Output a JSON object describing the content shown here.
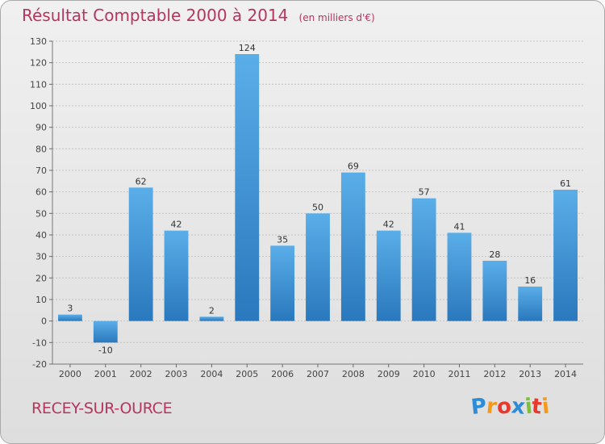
{
  "chart_data": {
    "type": "bar",
    "title": "Résultat Comptable 2000 à 2014",
    "subtitle": "(en milliers d'€)",
    "categories": [
      "2000",
      "2001",
      "2002",
      "2003",
      "2004",
      "2005",
      "2006",
      "2007",
      "2008",
      "2009",
      "2010",
      "2011",
      "2012",
      "2013",
      "2014"
    ],
    "values": [
      3,
      -10,
      62,
      42,
      2,
      124,
      35,
      50,
      69,
      42,
      57,
      41,
      28,
      16,
      61
    ],
    "ylim": [
      -20,
      130
    ],
    "yticks": [
      -20,
      -10,
      0,
      10,
      20,
      30,
      40,
      50,
      60,
      70,
      80,
      90,
      100,
      110,
      120,
      130
    ],
    "grid": true,
    "xlabel": "",
    "ylabel": "",
    "colors": {
      "bar_light": "#5aaee8",
      "bar_dark": "#2a78bd",
      "title": "#b5365c"
    }
  },
  "footer": {
    "city": "RECEY-SUR-OURCE"
  },
  "logo": {
    "letters": [
      {
        "ch": "P",
        "color": "#2e8bd6"
      },
      {
        "ch": "r",
        "color": "#f39a1c"
      },
      {
        "ch": "o",
        "color": "#e83a2c"
      },
      {
        "ch": "x",
        "color": "#2e8bd6"
      },
      {
        "ch": "i",
        "color": "#7bbf3a"
      },
      {
        "ch": "t",
        "color": "#e83a2c"
      },
      {
        "ch": "i",
        "color": "#f39a1c"
      }
    ]
  }
}
